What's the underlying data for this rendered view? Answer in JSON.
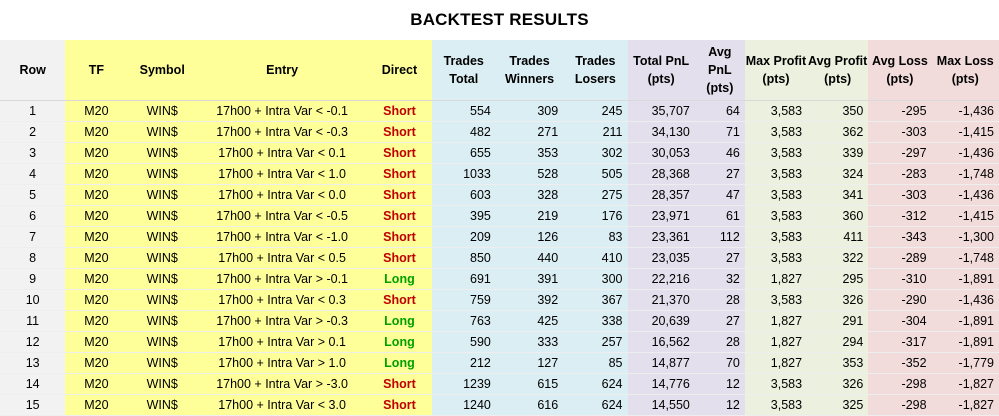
{
  "title": "BACKTEST RESULTS",
  "colors": {
    "row": "#f2f2f2",
    "yellow": "#ffff99",
    "blue": "#dbeef3",
    "purple": "#e4dfec",
    "green": "#ebf1de",
    "red": "#f2dcdb",
    "short": "#c00000",
    "long": "#00a000"
  },
  "columns": [
    {
      "label": "Row",
      "group": "row",
      "align": "c"
    },
    {
      "label": "TF",
      "group": "yellow",
      "align": "c"
    },
    {
      "label": "Symbol",
      "group": "yellow",
      "align": "c"
    },
    {
      "label": "Entry",
      "group": "yellow",
      "align": "c"
    },
    {
      "label": "Direct",
      "group": "yellow",
      "align": "c"
    },
    {
      "label": "Trades Total",
      "group": "blue",
      "align": "r"
    },
    {
      "label": "Trades Winners",
      "group": "blue",
      "align": "r"
    },
    {
      "label": "Trades Losers",
      "group": "blue",
      "align": "r"
    },
    {
      "label": "Total PnL (pts)",
      "group": "purple",
      "align": "r"
    },
    {
      "label": "Avg PnL (pts)",
      "group": "purple",
      "align": "r"
    },
    {
      "label": "Max Profit (pts)",
      "group": "green",
      "align": "r"
    },
    {
      "label": "Avg Profit (pts)",
      "group": "green",
      "align": "r"
    },
    {
      "label": "Avg Loss (pts)",
      "group": "red",
      "align": "r"
    },
    {
      "label": "Max Loss (pts)",
      "group": "red",
      "align": "r"
    }
  ],
  "rows": [
    [
      "1",
      "M20",
      "WIN$",
      "17h00 + Intra Var < -0.1",
      "Short",
      "554",
      "309",
      "245",
      "35,707",
      "64",
      "3,583",
      "350",
      "-295",
      "-1,436"
    ],
    [
      "2",
      "M20",
      "WIN$",
      "17h00 + Intra Var < -0.3",
      "Short",
      "482",
      "271",
      "211",
      "34,130",
      "71",
      "3,583",
      "362",
      "-303",
      "-1,415"
    ],
    [
      "3",
      "M20",
      "WIN$",
      "17h00 + Intra Var < 0.1",
      "Short",
      "655",
      "353",
      "302",
      "30,053",
      "46",
      "3,583",
      "339",
      "-297",
      "-1,436"
    ],
    [
      "4",
      "M20",
      "WIN$",
      "17h00 + Intra Var < 1.0",
      "Short",
      "1033",
      "528",
      "505",
      "28,368",
      "27",
      "3,583",
      "324",
      "-283",
      "-1,748"
    ],
    [
      "5",
      "M20",
      "WIN$",
      "17h00 + Intra Var < 0.0",
      "Short",
      "603",
      "328",
      "275",
      "28,357",
      "47",
      "3,583",
      "341",
      "-303",
      "-1,436"
    ],
    [
      "6",
      "M20",
      "WIN$",
      "17h00 + Intra Var < -0.5",
      "Short",
      "395",
      "219",
      "176",
      "23,971",
      "61",
      "3,583",
      "360",
      "-312",
      "-1,415"
    ],
    [
      "7",
      "M20",
      "WIN$",
      "17h00 + Intra Var < -1.0",
      "Short",
      "209",
      "126",
      "83",
      "23,361",
      "112",
      "3,583",
      "411",
      "-343",
      "-1,300"
    ],
    [
      "8",
      "M20",
      "WIN$",
      "17h00 + Intra Var < 0.5",
      "Short",
      "850",
      "440",
      "410",
      "23,035",
      "27",
      "3,583",
      "322",
      "-289",
      "-1,748"
    ],
    [
      "9",
      "M20",
      "WIN$",
      "17h00 + Intra Var > -0.1",
      "Long",
      "691",
      "391",
      "300",
      "22,216",
      "32",
      "1,827",
      "295",
      "-310",
      "-1,891"
    ],
    [
      "10",
      "M20",
      "WIN$",
      "17h00 + Intra Var < 0.3",
      "Short",
      "759",
      "392",
      "367",
      "21,370",
      "28",
      "3,583",
      "326",
      "-290",
      "-1,436"
    ],
    [
      "11",
      "M20",
      "WIN$",
      "17h00 + Intra Var > -0.3",
      "Long",
      "763",
      "425",
      "338",
      "20,639",
      "27",
      "1,827",
      "291",
      "-304",
      "-1,891"
    ],
    [
      "12",
      "M20",
      "WIN$",
      "17h00 + Intra Var > 0.1",
      "Long",
      "590",
      "333",
      "257",
      "16,562",
      "28",
      "1,827",
      "294",
      "-317",
      "-1,891"
    ],
    [
      "13",
      "M20",
      "WIN$",
      "17h00 + Intra Var > 1.0",
      "Long",
      "212",
      "127",
      "85",
      "14,877",
      "70",
      "1,827",
      "353",
      "-352",
      "-1,779"
    ],
    [
      "14",
      "M20",
      "WIN$",
      "17h00 + Intra Var > -3.0",
      "Short",
      "1239",
      "615",
      "624",
      "14,776",
      "12",
      "3,583",
      "326",
      "-298",
      "-1,827"
    ],
    [
      "15",
      "M20",
      "WIN$",
      "17h00 + Intra Var < 3.0",
      "Short",
      "1240",
      "616",
      "624",
      "14,550",
      "12",
      "3,583",
      "325",
      "-298",
      "-1,827"
    ]
  ]
}
